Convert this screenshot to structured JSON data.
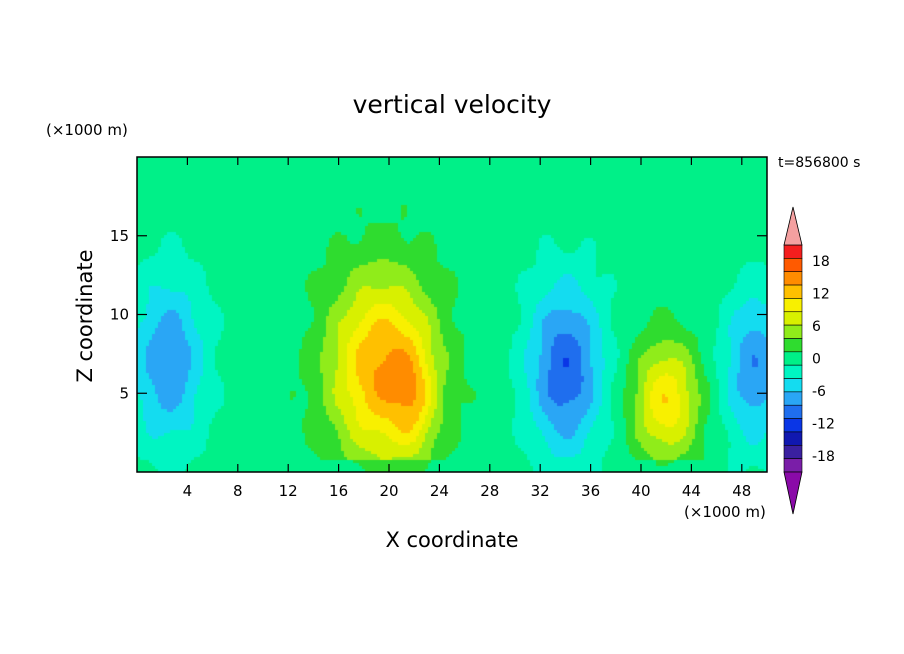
{
  "chart_data": {
    "type": "heatmap",
    "title": "vertical velocity",
    "xlabel": "X coordinate",
    "ylabel": "Z coordinate",
    "x_unit_label": "(×1000 m)",
    "y_unit_label": "(×1000 m)",
    "time_label": "t=856800 s",
    "xlim": [
      0,
      50
    ],
    "ylim": [
      0,
      20
    ],
    "x_ticks": [
      4,
      8,
      12,
      16,
      20,
      24,
      28,
      32,
      36,
      40,
      44,
      48
    ],
    "y_ticks": [
      5,
      10,
      15
    ],
    "colorbar": {
      "levels": [
        -21,
        -18,
        -15,
        -12,
        -9,
        -6,
        -3,
        0,
        3,
        6,
        9,
        12,
        15,
        18,
        21
      ],
      "tick_labels": [
        "18",
        "12",
        "6",
        "0",
        "-6",
        "-12",
        "-18"
      ],
      "tick_values": [
        18,
        12,
        6,
        0,
        -6,
        -12,
        -18
      ],
      "colors": [
        "#7a1ea8",
        "#3a20a0",
        "#1018b0",
        "#0a36e6",
        "#1f6eee",
        "#2aa6f5",
        "#14dcf0",
        "#00f5c2",
        "#00f088",
        "#2fdc2f",
        "#90ec1a",
        "#d8f000",
        "#f8f000",
        "#ffc000",
        "#ff8c00",
        "#ff5a00",
        "#f41e1e",
        "#f4a0a0"
      ],
      "under_color": "#8a0aa8",
      "over_color": "#f4a0a0"
    },
    "features": [
      {
        "type": "updraft",
        "x": 19.5,
        "z": 6.5,
        "sx": 4.2,
        "sz": 6.0,
        "amp": 17
      },
      {
        "type": "updraft",
        "x": 22.0,
        "z": 4.5,
        "sx": 1.6,
        "sz": 3.5,
        "amp": 6
      },
      {
        "type": "updraft",
        "x": 42.0,
        "z": 4.5,
        "sx": 2.6,
        "sz": 3.8,
        "amp": 13
      },
      {
        "type": "downdraft",
        "x": 34.0,
        "z": 6.5,
        "sx": 3.0,
        "sz": 5.5,
        "amp": -13
      },
      {
        "type": "downdraft",
        "x": 2.5,
        "z": 7.0,
        "sx": 3.0,
        "sz": 5.5,
        "amp": -10
      },
      {
        "type": "downdraft",
        "x": 49.0,
        "z": 6.5,
        "sx": 2.5,
        "sz": 5.0,
        "amp": -10
      }
    ]
  }
}
